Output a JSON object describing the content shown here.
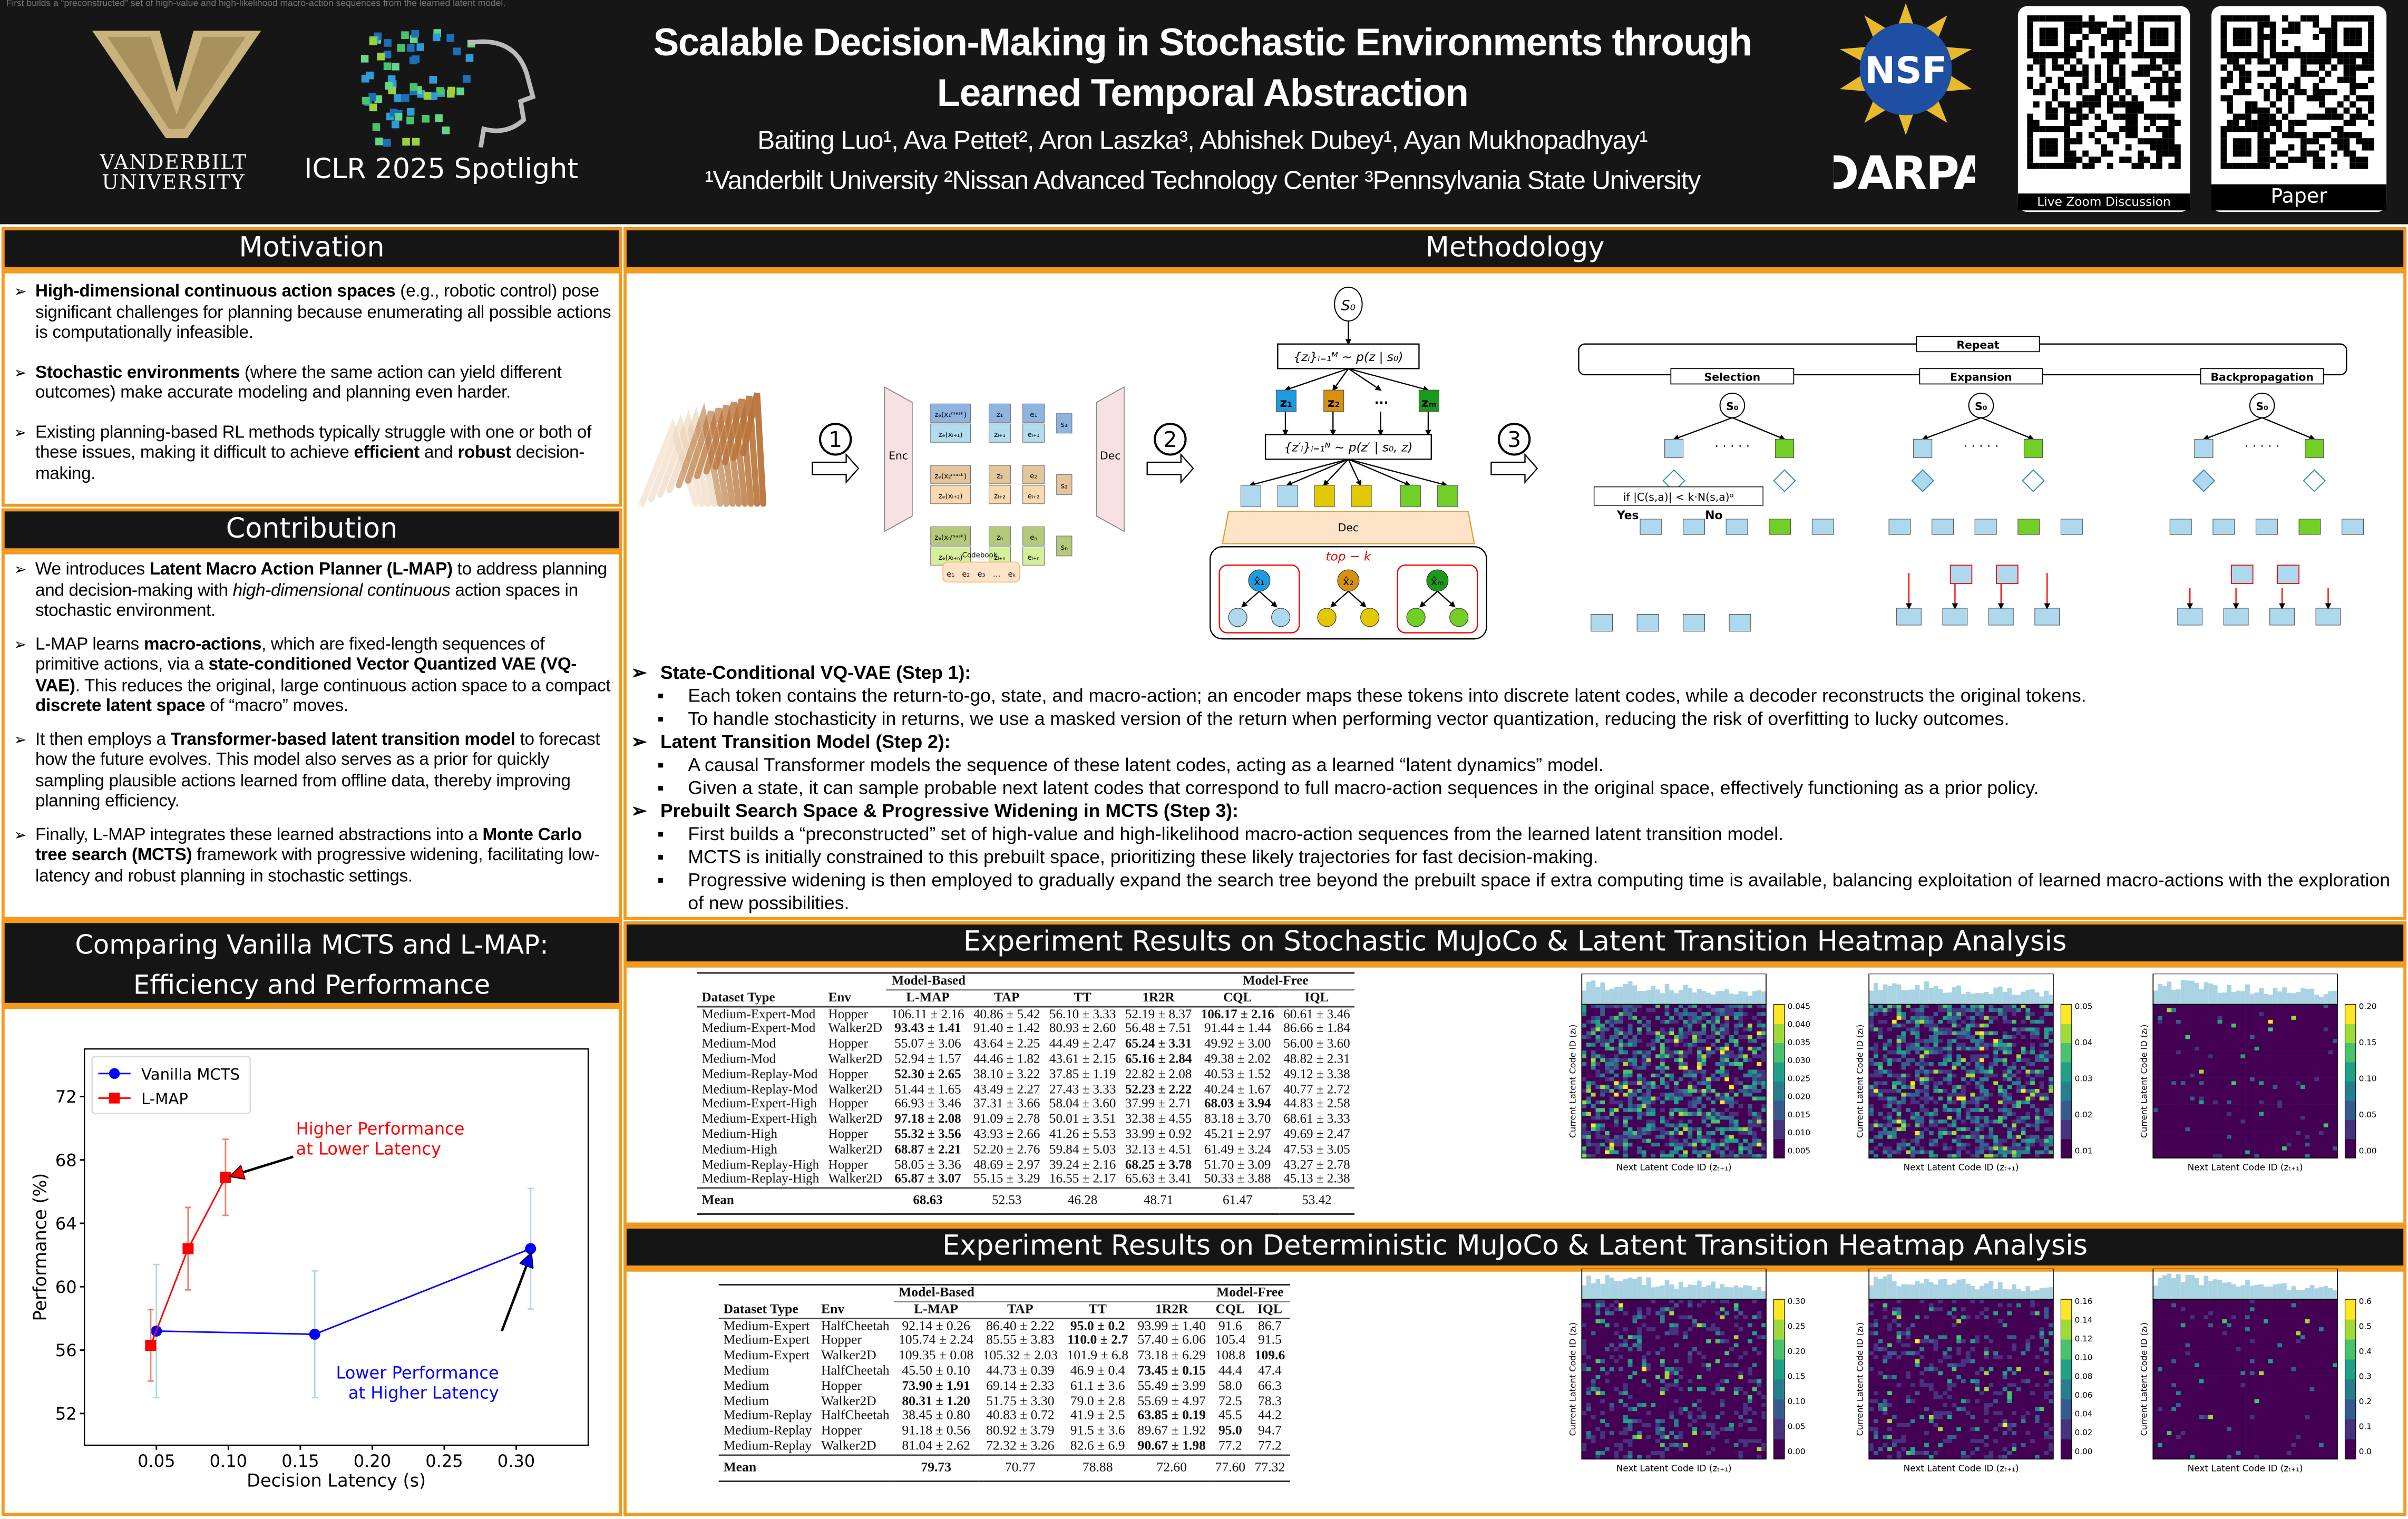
{
  "header": {
    "overlay_text": "First builds a “preconstructed” set of high-value and high-likelihood macro-action sequences from the learned latent model.",
    "title_line1": "Scalable Decision-Making in Stochastic Environments through",
    "title_line2": "Learned Temporal Abstraction",
    "authors": "Baiting Luo¹, Ava Pettet², Aron Laszka³, Abhishek Dubey¹, Ayan Mukhopadhyay¹",
    "affiliations": "¹Vanderbilt University ²Nissan Advanced Technology Center ³Pennsylvania State University",
    "vanderbilt_line1": "VANDERBILT",
    "vanderbilt_line2": "UNIVERSITY",
    "venue": "ICLR 2025 Spotlight",
    "nsf_logo": "NSF",
    "darpa_logo": "DARPA",
    "qr_codes": [
      {
        "label": "Live Zoom Discussion"
      },
      {
        "label": "Paper"
      }
    ],
    "colors": {
      "background": "#161616",
      "vanderbilt_gold": "#c9b27c",
      "accent_border": "#f39a1e"
    }
  },
  "motivation": {
    "title": "Motivation",
    "items": [
      [
        {
          "t": "High-dimensional continuous action spaces",
          "b": true
        },
        {
          "t": " (e.g., robotic control) pose significant challenges for planning because enumerating all possible actions is computationally infeasible."
        }
      ],
      [
        {
          "t": "Stochastic environments",
          "b": true
        },
        {
          "t": " (where the same action can yield different outcomes) make accurate modeling and planning even harder."
        }
      ],
      [
        {
          "t": "Existing planning-based RL methods typically struggle with one or both of these issues, making it difficult to achieve "
        },
        {
          "t": "efficient",
          "b": true
        },
        {
          "t": " and "
        },
        {
          "t": "robust",
          "b": true
        },
        {
          "t": " decision-making."
        }
      ]
    ]
  },
  "contribution": {
    "title": "Contribution",
    "items": [
      [
        {
          "t": "We introduces "
        },
        {
          "t": "Latent Macro Action Planner (L-MAP)",
          "b": true
        },
        {
          "t": " to address planning and decision-making with "
        },
        {
          "t": "high-dimensional continuous",
          "i": true
        },
        {
          "t": " action spaces in stochastic environment."
        }
      ],
      [
        {
          "t": "L-MAP learns "
        },
        {
          "t": "macro-actions",
          "b": true
        },
        {
          "t": ", which are fixed-length sequences of primitive actions, via a "
        },
        {
          "t": "state-conditioned Vector Quantized VAE (VQ-VAE)",
          "b": true
        },
        {
          "t": ". This reduces the original, large continuous action space to a compact "
        },
        {
          "t": "discrete latent space",
          "b": true
        },
        {
          "t": " of “macro” moves."
        }
      ],
      [
        {
          "t": "It then employs a "
        },
        {
          "t": "Transformer-based latent transition model",
          "b": true
        },
        {
          "t": " to forecast how the future evolves. This model also serves as a prior for quickly sampling plausible actions learned from offline data, thereby improving planning efficiency."
        }
      ],
      [
        {
          "t": "Finally, L-MAP integrates these learned abstractions into a "
        },
        {
          "t": "Monte Carlo tree search (MCTS)",
          "b": true
        },
        {
          "t": " framework with progressive widening, facilitating low-latency and robust planning in stochastic settings."
        }
      ]
    ]
  },
  "comparison": {
    "title_line1": "Comparing Vanilla MCTS and L-MAP:",
    "title_line2": "Efficiency and Performance"
  },
  "chart_data": {
    "type": "line",
    "xlabel": "Decision Latency (s)",
    "ylabel": "Performance (%)",
    "xlim": [
      0.0,
      0.35
    ],
    "ylim": [
      50,
      75
    ],
    "xticks": [
      "0.05",
      "0.10",
      "0.15",
      "0.20",
      "0.25",
      "0.30"
    ],
    "yticks": [
      "52",
      "56",
      "60",
      "64",
      "68",
      "72"
    ],
    "grid": false,
    "legend_position": "top-left",
    "series": [
      {
        "name": "Vanilla MCTS",
        "color": "#0000ff",
        "error_color": "#add8e6",
        "marker": "circle",
        "x": [
          0.05,
          0.16,
          0.31
        ],
        "y": [
          57.2,
          57.0,
          62.4
        ],
        "err": [
          4.2,
          4.0,
          3.8
        ]
      },
      {
        "name": "L-MAP",
        "color": "#ff0000",
        "error_color": "#f08070",
        "marker": "square",
        "x": [
          0.046,
          0.072,
          0.098
        ],
        "y": [
          56.3,
          62.4,
          66.9
        ],
        "err": [
          2.25,
          2.6,
          2.4
        ]
      }
    ],
    "annotations": [
      {
        "line1": "Higher Performance",
        "line2": "at Lower Latency",
        "color": "#ff0000",
        "point": [
          0.098,
          66.9
        ],
        "text_at": [
          0.15,
          69.6
        ]
      },
      {
        "line1": "Lower Performance",
        "line2": "at Higher Latency",
        "color": "#0000ff",
        "point": [
          0.31,
          62.4
        ],
        "text_at": [
          0.29,
          54.2
        ]
      }
    ]
  },
  "methodology": {
    "title": "Methodology",
    "diagram": {
      "steps": [
        "1",
        "2",
        "3"
      ],
      "enc": "Enc",
      "dec": "Dec",
      "codebook": "Codebook",
      "codebook_entries": [
        "e₁",
        "e₂",
        "e₃",
        "…",
        "eₖ"
      ],
      "token_rows": [
        {
          "in1": "zₑ(x₁ᵐᵃˢᵏ)",
          "z1": "z₁",
          "e1": "e₁",
          "in2": "zₑ(xₗ₊₁)",
          "z2": "zₗ₊₁",
          "e2": "eₗ₊₁",
          "s": "s₁",
          "c1": "#8fb4e0",
          "c2": "#b2dcf0"
        },
        {
          "in1": "zₑ(x₂ᵐᵃˢᵏ)",
          "z1": "z₂",
          "e1": "e₂",
          "in2": "zₑ(xₗ₊₂)",
          "z2": "zₗ₊₂",
          "e2": "eₗ₊₂",
          "s": "s₂",
          "c1": "#e5c59c",
          "c2": "#fad9b0"
        },
        {
          "in1": "zₑ(xₙᵐᵃˢᵏ)",
          "z1": "zₙ",
          "e1": "eₙ",
          "in2": "zₑ(xₗ₊ₙ)",
          "z2": "zₗ₊ₙ",
          "e2": "eₗ₊ₙ",
          "s": "sₙ",
          "c1": "#b5c97a",
          "c2": "#d6ef9b"
        }
      ],
      "s0": "S₀",
      "prior1": "{zᵢ}ᵢ₌₁ᴹ ~ p(z | s₀)",
      "prior2": "{z′ᵢ}ᵢ₌₁ᴺ ~ p(z′ | s₀, z)",
      "z_nodes": [
        "z₁",
        "z₂",
        "···",
        "zₘ"
      ],
      "topk": "top − k",
      "x_nodes": [
        "x̂₁",
        "x̂₂",
        "x̂ₘ"
      ],
      "repeat": "Repeat",
      "phases": [
        "Selection",
        "Expansion",
        "Backpropagation"
      ],
      "condition": "if |C(s,a)| < k·N(s,a)ᵅ",
      "yes": "Yes",
      "no": "No"
    },
    "sections": [
      {
        "heading": "State-Conditional VQ-VAE (Step 1):",
        "bullets": [
          "Each token contains the return-to-go, state, and macro-action; an encoder maps these tokens into discrete latent codes, while a decoder reconstructs the original tokens.",
          "To handle stochasticity in returns, we use a masked version of the return when performing vector quantization, reducing the risk of overfitting to lucky outcomes."
        ]
      },
      {
        "heading": "Latent Transition Model (Step 2):",
        "bullets": [
          "A causal Transformer models the sequence of these latent codes, acting as a learned “latent dynamics” model.",
          "Given a state, it can sample probable next latent codes that correspond to full macro-action sequences in the original space, effectively functioning as a prior policy."
        ]
      },
      {
        "heading": "Prebuilt Search Space & Progressive Widening in MCTS (Step 3):",
        "bullets": [
          "First builds a “preconstructed” set of high-value and high-likelihood macro-action sequences from the learned latent transition model.",
          "MCTS is initially constrained to this prebuilt space, prioritizing these likely trajectories for fast decision-making.",
          "Progressive widening is then employed to gradually expand the search tree beyond the prebuilt space if extra computing time is available, balancing exploitation of learned macro-actions with the exploration of new possibilities."
        ]
      }
    ]
  },
  "experiments": [
    {
      "title": "Experiment Results on Stochastic MuJoCo & Latent Transition Heatmap Analysis",
      "groups": [
        "Model-Based",
        "Model-Free"
      ],
      "columns": [
        "Dataset Type",
        "Env",
        "L-MAP",
        "TAP",
        "TT",
        "1R2R",
        "CQL",
        "IQL"
      ],
      "rows": [
        {
          "cells": [
            "Medium-Expert-Mod",
            "Hopper",
            "106.11 ± 2.16",
            "40.86 ± 5.42",
            "56.10 ± 3.33",
            "52.19 ± 8.37",
            "106.17 ± 2.16",
            "60.61 ± 3.46"
          ],
          "bold": [
            6
          ]
        },
        {
          "cells": [
            "Medium-Expert-Mod",
            "Walker2D",
            "93.43 ± 1.41",
            "91.40 ± 1.42",
            "80.93 ± 2.60",
            "56.48 ± 7.51",
            "91.44 ± 1.44",
            "86.66 ± 1.84"
          ],
          "bold": [
            2
          ]
        },
        {
          "cells": [
            "Medium-Mod",
            "Hopper",
            "55.07 ± 3.06",
            "43.64 ± 2.25",
            "44.49 ± 2.47",
            "65.24 ± 3.31",
            "49.92 ± 3.00",
            "56.00 ± 3.60"
          ],
          "bold": [
            5
          ]
        },
        {
          "cells": [
            "Medium-Mod",
            "Walker2D",
            "52.94 ± 1.57",
            "44.46 ± 1.82",
            "43.61 ± 2.15",
            "65.16 ± 2.84",
            "49.38 ± 2.02",
            "48.82 ± 2.31"
          ],
          "bold": [
            5
          ]
        },
        {
          "cells": [
            "Medium-Replay-Mod",
            "Hopper",
            "52.30 ± 2.65",
            "38.10 ± 3.22",
            "37.85 ± 1.19",
            "22.82 ± 2.08",
            "40.53 ± 1.52",
            "49.12 ± 3.38"
          ],
          "bold": [
            2
          ]
        },
        {
          "cells": [
            "Medium-Replay-Mod",
            "Walker2D",
            "51.44 ± 1.65",
            "43.49 ± 2.27",
            "27.43 ± 3.33",
            "52.23 ± 2.22",
            "40.24 ± 1.67",
            "40.77 ± 2.72"
          ],
          "bold": [
            5
          ]
        },
        {
          "cells": [
            "Medium-Expert-High",
            "Hopper",
            "66.93 ± 3.46",
            "37.31 ± 3.66",
            "58.04 ± 3.60",
            "37.99 ± 2.71",
            "68.03 ± 3.94",
            "44.83 ± 2.58"
          ],
          "bold": [
            6
          ]
        },
        {
          "cells": [
            "Medium-Expert-High",
            "Walker2D",
            "97.18 ± 2.08",
            "91.09 ± 2.78",
            "50.01 ± 3.51",
            "32.38 ± 4.55",
            "83.18 ± 3.70",
            "68.61 ± 3.33"
          ],
          "bold": [
            2
          ]
        },
        {
          "cells": [
            "Medium-High",
            "Hopper",
            "55.32 ± 3.56",
            "43.93 ± 2.66",
            "41.26 ± 5.53",
            "33.99 ± 0.92",
            "45.21 ± 2.97",
            "49.69 ± 2.47"
          ],
          "bold": [
            2
          ]
        },
        {
          "cells": [
            "Medium-High",
            "Walker2D",
            "68.87 ± 2.21",
            "52.20 ± 2.76",
            "59.84 ± 5.03",
            "32.13 ± 4.51",
            "61.49 ± 3.24",
            "47.53 ± 3.05"
          ],
          "bold": [
            2
          ]
        },
        {
          "cells": [
            "Medium-Replay-High",
            "Hopper",
            "58.05 ± 3.36",
            "48.69 ± 2.97",
            "39.24 ± 2.16",
            "68.25 ± 3.78",
            "51.70 ± 3.09",
            "43.27 ± 2.78"
          ],
          "bold": [
            5
          ]
        },
        {
          "cells": [
            "Medium-Replay-High",
            "Walker2D",
            "65.87 ± 3.07",
            "55.15 ± 3.29",
            "16.55 ± 2.17",
            "65.63 ± 3.41",
            "50.33 ± 3.88",
            "45.13 ± 2.38"
          ],
          "bold": [
            2
          ]
        }
      ],
      "mean": {
        "cells": [
          "Mean",
          "",
          "68.63",
          "52.53",
          "46.28",
          "48.71",
          "61.47",
          "53.42"
        ],
        "bold": [
          0,
          2
        ]
      },
      "heatmaps": [
        {
          "ylabel": "Current Latent Code ID (zₜ)",
          "xlabel": "Next Latent Code ID (zₜ₊₁)",
          "colorbar": [
            "0.045",
            "0.040",
            "0.035",
            "0.030",
            "0.025",
            "0.020",
            "0.015",
            "0.010",
            "0.005"
          ]
        },
        {
          "ylabel": "Current Latent Code ID (zₜ)",
          "xlabel": "Next Latent Code ID (zₜ₊₁)",
          "colorbar": [
            "0.05",
            "0.04",
            "0.03",
            "0.02",
            "0.01"
          ]
        },
        {
          "ylabel": "Current Latent Code ID (zₜ)",
          "xlabel": "Next Latent Code ID (zₜ₊₁)",
          "colorbar": [
            "0.20",
            "0.15",
            "0.10",
            "0.05",
            "0.00"
          ]
        }
      ]
    },
    {
      "title": "Experiment Results on Deterministic MuJoCo & Latent Transition Heatmap Analysis",
      "groups": [
        "Model-Based",
        "Model-Free"
      ],
      "columns": [
        "Dataset Type",
        "Env",
        "L-MAP",
        "TAP",
        "TT",
        "1R2R",
        "CQL",
        "IQL"
      ],
      "rows": [
        {
          "cells": [
            "Medium-Expert",
            "HalfCheetah",
            "92.14 ± 0.26",
            "86.40 ± 2.22",
            "95.0 ± 0.2",
            "93.99 ± 1.40",
            "91.6",
            "86.7"
          ],
          "bold": [
            4
          ]
        },
        {
          "cells": [
            "Medium-Expert",
            "Hopper",
            "105.74 ± 2.24",
            "85.55 ± 3.83",
            "110.0 ± 2.7",
            "57.40 ± 6.06",
            "105.4",
            "91.5"
          ],
          "bold": [
            4
          ]
        },
        {
          "cells": [
            "Medium-Expert",
            "Walker2D",
            "109.35 ± 0.08",
            "105.32 ± 2.03",
            "101.9 ± 6.8",
            "73.18 ± 6.29",
            "108.8",
            "109.6"
          ],
          "bold": [
            7
          ]
        },
        {
          "cells": [
            "Medium",
            "HalfCheetah",
            "45.50 ± 0.10",
            "44.73 ± 0.39",
            "46.9 ± 0.4",
            "73.45 ± 0.15",
            "44.4",
            "47.4"
          ],
          "bold": [
            5
          ]
        },
        {
          "cells": [
            "Medium",
            "Hopper",
            "73.90 ± 1.91",
            "69.14 ± 2.33",
            "61.1 ± 3.6",
            "55.49 ± 3.99",
            "58.0",
            "66.3"
          ],
          "bold": [
            2
          ]
        },
        {
          "cells": [
            "Medium",
            "Walker2D",
            "80.31 ± 1.20",
            "51.75 ± 3.30",
            "79.0 ± 2.8",
            "55.69 ± 4.97",
            "72.5",
            "78.3"
          ],
          "bold": [
            2
          ]
        },
        {
          "cells": [
            "Medium-Replay",
            "HalfCheetah",
            "38.45 ± 0.80",
            "40.83 ± 0.72",
            "41.9 ± 2.5",
            "63.85 ± 0.19",
            "45.5",
            "44.2"
          ],
          "bold": [
            5
          ]
        },
        {
          "cells": [
            "Medium-Replay",
            "Hopper",
            "91.18 ± 0.56",
            "80.92 ± 3.79",
            "91.5 ± 3.6",
            "89.67 ± 1.92",
            "95.0",
            "94.7"
          ],
          "bold": [
            6
          ]
        },
        {
          "cells": [
            "Medium-Replay",
            "Walker2D",
            "81.04 ± 2.62",
            "72.32 ± 3.26",
            "82.6 ± 6.9",
            "90.67 ± 1.98",
            "77.2",
            "77.2"
          ],
          "bold": [
            5
          ]
        }
      ],
      "mean": {
        "cells": [
          "Mean",
          "",
          "79.73",
          "70.77",
          "78.88",
          "72.60",
          "77.60",
          "77.32"
        ],
        "bold": [
          0,
          2
        ]
      },
      "heatmaps": [
        {
          "ylabel": "Current Latent Code ID (zₜ)",
          "xlabel": "Next Latent Code ID (zₜ₊₁)",
          "colorbar": [
            "0.30",
            "0.25",
            "0.20",
            "0.15",
            "0.10",
            "0.05",
            "0.00"
          ]
        },
        {
          "ylabel": "Current Latent Code ID (zₜ)",
          "xlabel": "Next Latent Code ID (zₜ₊₁)",
          "colorbar": [
            "0.16",
            "0.14",
            "0.12",
            "0.10",
            "0.08",
            "0.06",
            "0.04",
            "0.02",
            "0.00"
          ]
        },
        {
          "ylabel": "Current Latent Code ID (zₜ)",
          "xlabel": "Next Latent Code ID (zₜ₊₁)",
          "colorbar": [
            "0.6",
            "0.5",
            "0.4",
            "0.3",
            "0.2",
            "0.1",
            "0.0"
          ]
        }
      ]
    }
  ]
}
